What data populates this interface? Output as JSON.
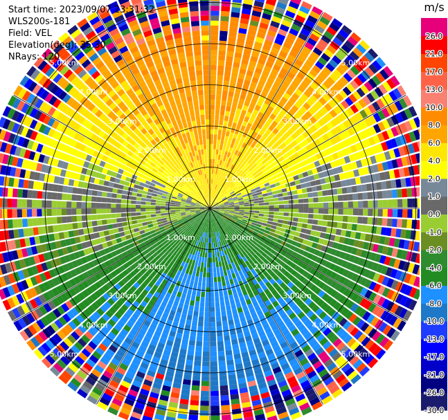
{
  "header": {
    "start_time": "Start time: 2023/09/07 23:31:32",
    "instrument": "WLS200s-181",
    "field": "Field: VEL",
    "elevation": "Elevation(deg): 35.30",
    "nrays": "NRays: 120"
  },
  "chart_data": {
    "type": "heatmap",
    "projection": "polar-ppi",
    "title": "",
    "field": "VEL",
    "n_rays": 120,
    "range_rings_km": [
      1.0,
      2.0,
      3.0,
      4.0,
      5.0
    ],
    "ring_labels": [
      "1.00km",
      "2.00km",
      "3.00km",
      "4.00km",
      "5.00km"
    ],
    "spokes_deg": [
      0,
      30,
      60,
      90,
      120,
      150,
      180,
      210,
      240,
      270,
      300,
      330
    ],
    "max_range_km": 5.5,
    "colorbar": {
      "unit": "m/s",
      "bounds": [
        -30.0,
        -26.0,
        -21.0,
        -17.0,
        -13.0,
        -10.0,
        -8.0,
        -6.0,
        -4.0,
        -2.0,
        -1.0,
        0.0,
        1.0,
        2.0,
        4.0,
        6.0,
        8.0,
        10.0,
        13.0,
        17.0,
        21.0,
        26.0,
        30.0
      ],
      "tick_labels": [
        "-30.0",
        "-26.0",
        "-21.0",
        "-17.0",
        "-13.0",
        "-10.0",
        "-8.0",
        "-6.0",
        "-4.0",
        "-2.0",
        "-1.0",
        "0.0",
        "1.0",
        "2.0",
        "4.0",
        "6.0",
        "8.0",
        "10.0",
        "13.0",
        "17.0",
        "21.0",
        "26.0"
      ],
      "colors": [
        "#1b1b6e",
        "#000080",
        "#0000c8",
        "#0000ff",
        "#1e3cff",
        "#1e78c8",
        "#1e90ff",
        "#228b22",
        "#2e8b2e",
        "#6b8e23",
        "#9acd32",
        "#696969",
        "#778899",
        "#ffff00",
        "#ffe600",
        "#ffa500",
        "#ff8c00",
        "#fa8072",
        "#ff6347",
        "#ff4500",
        "#ff0000",
        "#e6007a"
      ]
    },
    "pattern": {
      "description_values_mps": "near-field approx. -8 (south) to +8 (north)",
      "noise_beyond_km": 4.0
    }
  }
}
